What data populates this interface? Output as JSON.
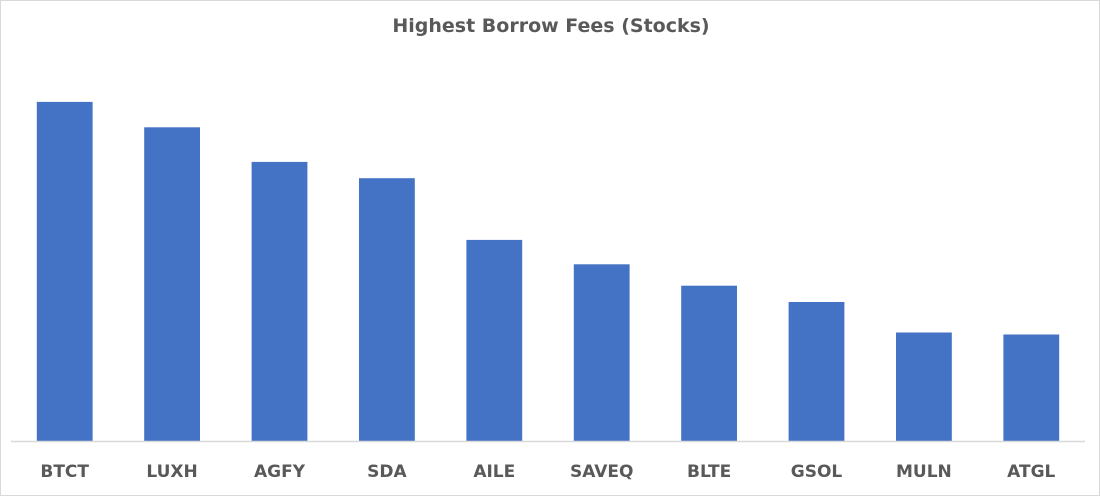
{
  "chart_data": {
    "type": "bar",
    "title": "Highest Borrow Fees (Stocks)",
    "xlabel": "",
    "ylabel": "",
    "categories": [
      "BTCT",
      "LUXH",
      "AGFY",
      "SDA",
      "AILE",
      "SAVEQ",
      "BLTE",
      "GSOL",
      "MULN",
      "ATGL"
    ],
    "values": [
      100,
      92.5,
      82.3,
      77.5,
      59.3,
      52.1,
      45.8,
      41,
      32,
      31.4
    ],
    "ylim": [
      0,
      110
    ],
    "grid": false,
    "legend": "none",
    "bar_color": "#4472c4",
    "axis_color": "#d9d9d9"
  }
}
